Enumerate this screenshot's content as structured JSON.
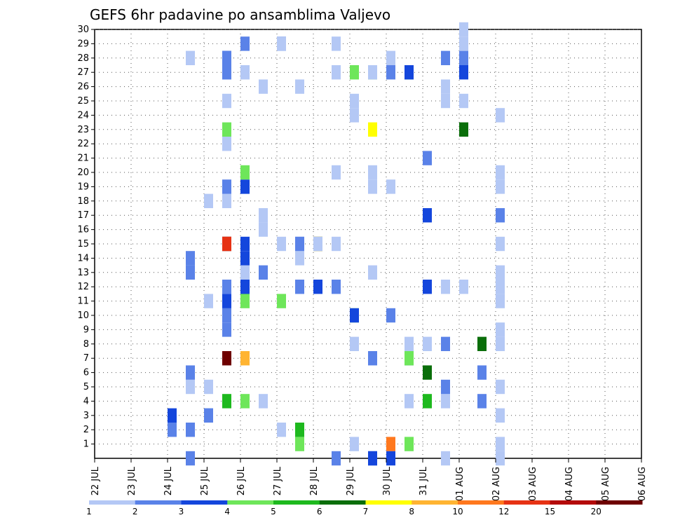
{
  "chart_data": {
    "type": "heatmap",
    "title": "GEFS 6hr padavine po ansamblima Valjevo",
    "xlabel": "",
    "ylabel": "",
    "x_ticks": [
      "22 JUL",
      "23 JUL",
      "24 JUL",
      "25 JUL",
      "26 JUL",
      "27 JUL",
      "28 JUL",
      "29 JUL",
      "30 JUL",
      "31 JUL",
      "01 AUG",
      "02 AUG",
      "03 AUG",
      "04 AUG",
      "05 AUG",
      "06 AUG"
    ],
    "y_ticks": [
      "1",
      "2",
      "3",
      "4",
      "5",
      "6",
      "7",
      "8",
      "9",
      "10",
      "11",
      "12",
      "13",
      "14",
      "15",
      "16",
      "17",
      "18",
      "19",
      "20",
      "21",
      "22",
      "23",
      "24",
      "25",
      "26",
      "27",
      "28",
      "29",
      "30"
    ],
    "xlim_days": [
      0,
      15
    ],
    "ylim_members": [
      0,
      30
    ],
    "step_hours": 6,
    "grid": true,
    "colorbar": {
      "position": "bottom",
      "labels": [
        "1",
        "2",
        "3",
        "4",
        "5",
        "6",
        "7",
        "8",
        "10",
        "12",
        "15",
        "20"
      ],
      "colors": [
        "#b4c8f5",
        "#5a82e8",
        "#1446dc",
        "#6ee65a",
        "#1eb91e",
        "#0a6e0a",
        "#ffff00",
        "#ffb432",
        "#ff781e",
        "#e63214",
        "#b40a0a",
        "#6e0000"
      ]
    },
    "cells": [
      [
        4,
        2,
        1
      ],
      [
        4,
        3,
        2
      ],
      [
        5,
        0,
        1
      ],
      [
        5,
        2,
        1
      ],
      [
        5,
        5,
        0
      ],
      [
        5,
        6,
        1
      ],
      [
        5,
        13,
        1
      ],
      [
        5,
        14,
        1
      ],
      [
        5,
        28,
        0
      ],
      [
        6,
        3,
        0
      ],
      [
        6,
        3,
        1
      ],
      [
        6,
        5,
        0
      ],
      [
        6,
        11,
        0
      ],
      [
        6,
        18,
        0
      ],
      [
        7,
        4,
        4
      ],
      [
        7,
        9,
        1
      ],
      [
        7,
        10,
        1
      ],
      [
        7,
        11,
        0
      ],
      [
        7,
        11,
        1
      ],
      [
        7,
        11,
        2
      ],
      [
        7,
        12,
        0
      ],
      [
        7,
        12,
        1
      ],
      [
        7,
        15,
        0
      ],
      [
        7,
        15,
        11
      ],
      [
        7,
        18,
        0
      ],
      [
        7,
        19,
        1
      ],
      [
        7,
        22,
        0
      ],
      [
        7,
        25,
        0
      ],
      [
        7,
        27,
        0
      ],
      [
        7,
        27,
        1
      ],
      [
        7,
        28,
        2
      ],
      [
        7,
        28,
        1
      ],
      [
        7,
        7,
        11
      ],
      [
        7,
        15,
        9
      ],
      [
        7,
        23,
        3
      ],
      [
        8,
        7,
        7
      ],
      [
        8,
        11,
        3
      ],
      [
        8,
        12,
        1
      ],
      [
        8,
        12,
        4
      ],
      [
        8,
        12,
        2
      ],
      [
        8,
        13,
        0
      ],
      [
        8,
        14,
        2
      ],
      [
        8,
        15,
        2
      ],
      [
        8,
        19,
        2
      ],
      [
        8,
        20,
        3
      ],
      [
        8,
        4,
        3
      ],
      [
        8,
        27,
        0
      ],
      [
        8,
        29,
        1
      ],
      [
        9,
        4,
        0
      ],
      [
        9,
        13,
        1
      ],
      [
        9,
        16,
        0
      ],
      [
        9,
        17,
        0
      ],
      [
        9,
        26,
        0
      ],
      [
        10,
        2,
        0
      ],
      [
        10,
        11,
        3
      ],
      [
        10,
        15,
        0
      ],
      [
        10,
        29,
        1
      ],
      [
        10,
        29,
        0
      ],
      [
        11,
        1,
        3
      ],
      [
        11,
        2,
        0
      ],
      [
        11,
        2,
        4
      ],
      [
        11,
        12,
        1
      ],
      [
        11,
        14,
        0
      ],
      [
        11,
        15,
        0
      ],
      [
        11,
        15,
        1
      ],
      [
        11,
        26,
        0
      ],
      [
        12,
        12,
        2
      ],
      [
        12,
        15,
        5
      ],
      [
        12,
        15,
        7
      ],
      [
        12,
        15,
        0
      ],
      [
        13,
        0,
        1
      ],
      [
        13,
        12,
        1
      ],
      [
        13,
        15,
        0
      ],
      [
        13,
        20,
        0
      ],
      [
        13,
        27,
        0
      ],
      [
        13,
        29,
        0
      ],
      [
        14,
        1,
        0
      ],
      [
        14,
        8,
        0
      ],
      [
        14,
        10,
        3
      ],
      [
        14,
        10,
        2
      ],
      [
        14,
        24,
        0
      ],
      [
        14,
        25,
        0
      ],
      [
        14,
        27,
        3
      ],
      [
        15,
        0,
        1
      ],
      [
        15,
        0,
        2
      ],
      [
        15,
        7,
        1
      ],
      [
        15,
        13,
        0
      ],
      [
        15,
        19,
        0
      ],
      [
        15,
        23,
        6
      ],
      [
        15,
        27,
        3
      ],
      [
        15,
        27,
        0
      ],
      [
        15,
        20,
        0
      ],
      [
        16,
        1,
        8
      ],
      [
        16,
        0,
        2
      ],
      [
        16,
        10,
        1
      ],
      [
        16,
        19,
        0
      ],
      [
        16,
        27,
        1
      ],
      [
        16,
        28,
        0
      ],
      [
        17,
        1,
        3
      ],
      [
        17,
        4,
        0
      ],
      [
        17,
        7,
        1
      ],
      [
        17,
        7,
        3
      ],
      [
        17,
        8,
        0
      ],
      [
        17,
        27,
        3
      ],
      [
        17,
        27,
        2
      ],
      [
        18,
        4,
        4
      ],
      [
        18,
        6,
        5
      ],
      [
        18,
        21,
        1
      ],
      [
        18,
        17,
        2
      ],
      [
        18,
        8,
        0
      ],
      [
        18,
        12,
        2
      ],
      [
        19,
        0,
        0
      ],
      [
        19,
        4,
        0
      ],
      [
        19,
        5,
        1
      ],
      [
        19,
        8,
        1
      ],
      [
        19,
        12,
        0
      ],
      [
        19,
        25,
        0
      ],
      [
        19,
        26,
        0
      ],
      [
        19,
        28,
        1
      ],
      [
        20,
        12,
        0
      ],
      [
        20,
        23,
        5
      ],
      [
        20,
        27,
        2
      ],
      [
        20,
        25,
        0
      ],
      [
        20,
        28,
        1
      ],
      [
        20,
        29,
        0
      ],
      [
        20,
        30,
        0
      ],
      [
        21,
        6,
        1
      ],
      [
        21,
        8,
        5
      ],
      [
        21,
        4,
        1
      ],
      [
        22,
        0,
        0
      ],
      [
        22,
        1,
        0
      ],
      [
        22,
        3,
        0
      ],
      [
        22,
        5,
        0
      ],
      [
        22,
        8,
        0
      ],
      [
        22,
        9,
        0
      ],
      [
        22,
        11,
        0
      ],
      [
        22,
        12,
        0
      ],
      [
        22,
        13,
        0
      ],
      [
        22,
        15,
        0
      ],
      [
        22,
        17,
        1
      ],
      [
        22,
        19,
        0
      ],
      [
        22,
        20,
        0
      ],
      [
        22,
        24,
        0
      ]
    ]
  }
}
